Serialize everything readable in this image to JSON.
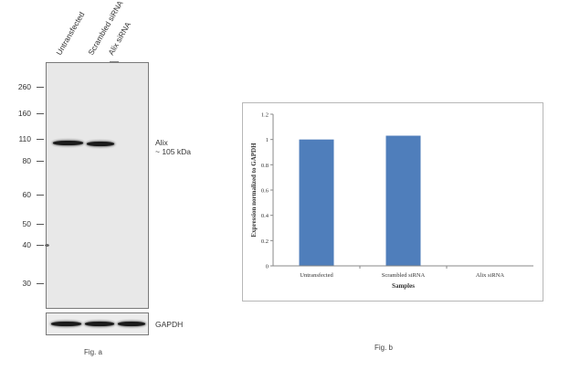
{
  "western_blot": {
    "lane_labels": [
      "Untransfected",
      "Scrambled siRNA",
      "Alix siRNA"
    ],
    "mw_markers": [
      "260",
      "160",
      "110",
      "80",
      "60",
      "50",
      "40",
      "30"
    ],
    "target_label_line1": "Alix",
    "target_label_line2": "~ 105 kDa",
    "loading_control_label": "GAPDH",
    "caption": "Fig. a"
  },
  "chart_data": {
    "type": "bar",
    "title": "",
    "categories": [
      "Untransfected",
      "Scrambled siRNA",
      "Alix siRNA"
    ],
    "values": [
      1.0,
      1.03,
      0.0
    ],
    "xlabel": "Samples",
    "ylabel": "Expression normalized to GAPDH",
    "ylim": [
      0,
      1.2
    ],
    "yticks": [
      "0",
      "0.2",
      "0.4",
      "0.6",
      "0.8",
      "1",
      "1.2"
    ],
    "bar_color": "#4f7ebb",
    "grid": false,
    "legend": "none",
    "caption": "Fig. b"
  }
}
